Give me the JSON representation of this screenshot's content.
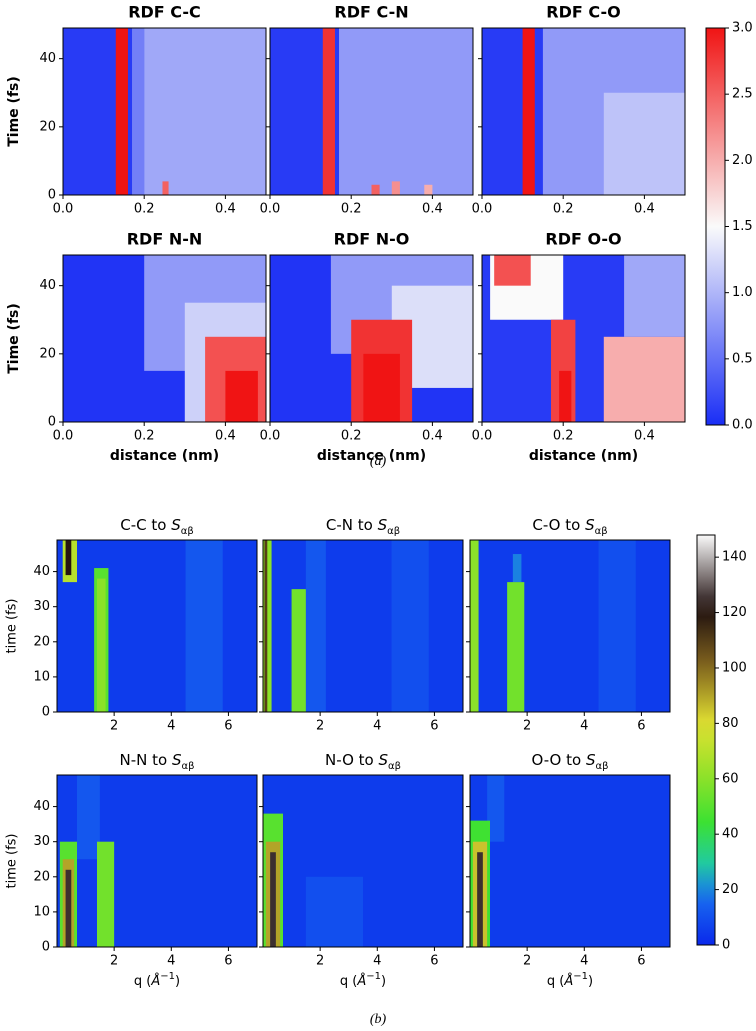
{
  "chart_data": [
    {
      "type": "heatmap",
      "caption": "(a)",
      "xlabel": "distance (nm)",
      "ylabel": "Time (fs)",
      "xlim": [
        0,
        0.5
      ],
      "xticks": [
        {
          "value": 0,
          "label": "0.0"
        },
        0.2,
        0.4
      ],
      "ylim": [
        0,
        49
      ],
      "yticks": [
        0,
        20,
        40
      ],
      "colorbar": {
        "lim": [
          0,
          3
        ],
        "ticks": [
          {
            "value": 0,
            "label": "0.0"
          },
          0.5,
          {
            "value": 1,
            "label": "1.0"
          },
          1.5,
          {
            "value": 2,
            "label": "2.0"
          },
          2.5,
          {
            "value": 3,
            "label": "3.0"
          }
        ]
      },
      "panels": [
        {
          "title": "RDF C-C",
          "cells": [
            {
              "x": [
                0,
                0.5
              ],
              "y": [
                0,
                49
              ],
              "value": 0.1
            },
            {
              "x": [
                0.17,
                0.2
              ],
              "y": [
                0,
                49
              ],
              "value": 0.6
            },
            {
              "x": [
                0.2,
                0.5
              ],
              "y": [
                0,
                49
              ],
              "value": 0.9
            },
            {
              "x": [
                0.13,
                0.16
              ],
              "y": [
                0,
                49
              ],
              "value": 3
            },
            {
              "x": [
                0.245,
                0.26
              ],
              "y": [
                0,
                4
              ],
              "value": 2.5
            }
          ]
        },
        {
          "title": "RDF C-N",
          "cells": [
            {
              "x": [
                0,
                0.5
              ],
              "y": [
                0,
                49
              ],
              "value": 0.1
            },
            {
              "x": [
                0.17,
                0.5
              ],
              "y": [
                0,
                49
              ],
              "value": 0.8
            },
            {
              "x": [
                0.13,
                0.16
              ],
              "y": [
                0,
                49
              ],
              "value": 2.8
            },
            {
              "x": [
                0.25,
                0.27
              ],
              "y": [
                0,
                3
              ],
              "value": 2.5
            },
            {
              "x": [
                0.3,
                0.32
              ],
              "y": [
                0,
                4
              ],
              "value": 2.2
            },
            {
              "x": [
                0.38,
                0.4
              ],
              "y": [
                0,
                3
              ],
              "value": 2.0
            }
          ]
        },
        {
          "title": "RDF C-O",
          "cells": [
            {
              "x": [
                0,
                0.5
              ],
              "y": [
                0,
                49
              ],
              "value": 0.1
            },
            {
              "x": [
                0.15,
                0.5
              ],
              "y": [
                0,
                49
              ],
              "value": 0.8
            },
            {
              "x": [
                0.3,
                0.5
              ],
              "y": [
                0,
                30
              ],
              "value": 1.1
            },
            {
              "x": [
                0.1,
                0.13
              ],
              "y": [
                0,
                49
              ],
              "value": 3
            }
          ]
        },
        {
          "title": "RDF N-N",
          "cells": [
            {
              "x": [
                0,
                0.5
              ],
              "y": [
                0,
                49
              ],
              "value": 0.05
            },
            {
              "x": [
                0.2,
                0.5
              ],
              "y": [
                15,
                49
              ],
              "value": 0.8
            },
            {
              "x": [
                0.3,
                0.5
              ],
              "y": [
                0,
                35
              ],
              "value": 1.2
            },
            {
              "x": [
                0.35,
                0.5
              ],
              "y": [
                0,
                25
              ],
              "value": 2.6
            },
            {
              "x": [
                0.4,
                0.48
              ],
              "y": [
                0,
                15
              ],
              "value": 3
            }
          ]
        },
        {
          "title": "RDF N-O",
          "cells": [
            {
              "x": [
                0,
                0.5
              ],
              "y": [
                0,
                49
              ],
              "value": 0.05
            },
            {
              "x": [
                0.15,
                0.5
              ],
              "y": [
                20,
                49
              ],
              "value": 0.8
            },
            {
              "x": [
                0.3,
                0.5
              ],
              "y": [
                10,
                40
              ],
              "value": 1.3
            },
            {
              "x": [
                0.2,
                0.35
              ],
              "y": [
                0,
                30
              ],
              "value": 2.8
            },
            {
              "x": [
                0.23,
                0.32
              ],
              "y": [
                0,
                20
              ],
              "value": 3
            }
          ]
        },
        {
          "title": "RDF O-O",
          "cells": [
            {
              "x": [
                0,
                0.5
              ],
              "y": [
                0,
                49
              ],
              "value": 0.1
            },
            {
              "x": [
                0.35,
                0.5
              ],
              "y": [
                25,
                49
              ],
              "value": 0.9
            },
            {
              "x": [
                0.02,
                0.2
              ],
              "y": [
                30,
                49
              ],
              "value": 1.5
            },
            {
              "x": [
                0.03,
                0.12
              ],
              "y": [
                40,
                49
              ],
              "value": 2.6
            },
            {
              "x": [
                0.3,
                0.5
              ],
              "y": [
                0,
                25
              ],
              "value": 2.0
            },
            {
              "x": [
                0.17,
                0.23
              ],
              "y": [
                0,
                30
              ],
              "value": 2.7
            },
            {
              "x": [
                0.19,
                0.22
              ],
              "y": [
                0,
                15
              ],
              "value": 3
            }
          ]
        }
      ]
    },
    {
      "type": "heatmap",
      "caption": "(b)",
      "xlabel": [
        "q (",
        "Å",
        "−1",
        ")"
      ],
      "ylabel": "time (fs)",
      "xlim": [
        0,
        7
      ],
      "xticks": [
        2,
        4,
        6
      ],
      "ylim": [
        0,
        49
      ],
      "yticks": [
        0,
        10,
        20,
        30,
        40
      ],
      "colorbar": {
        "lim": [
          0,
          148
        ],
        "ticks": [
          0,
          20,
          40,
          60,
          80,
          100,
          120,
          140
        ]
      },
      "panels": [
        {
          "title": [
            "C-C to ",
            "S",
            "αβ"
          ],
          "cells": [
            {
              "x": [
                0,
                7
              ],
              "y": [
                0,
                49
              ],
              "value": 5
            },
            {
              "x": [
                4.5,
                5.8
              ],
              "y": [
                0,
                49
              ],
              "value": 12
            },
            {
              "x": [
                1.3,
                1.8
              ],
              "y": [
                0,
                41
              ],
              "value": 50
            },
            {
              "x": [
                1.4,
                1.7
              ],
              "y": [
                0,
                38
              ],
              "value": 60
            },
            {
              "x": [
                0.2,
                0.7
              ],
              "y": [
                37,
                49
              ],
              "value": 70
            },
            {
              "x": [
                0.3,
                0.5
              ],
              "y": [
                39,
                49
              ],
              "value": 120
            }
          ]
        },
        {
          "title": [
            "C-N to ",
            "S",
            "αβ"
          ],
          "cells": [
            {
              "x": [
                0,
                7
              ],
              "y": [
                0,
                49
              ],
              "value": 5
            },
            {
              "x": [
                4.5,
                5.8
              ],
              "y": [
                0,
                49
              ],
              "value": 10
            },
            {
              "x": [
                1.5,
                2.2
              ],
              "y": [
                0,
                49
              ],
              "value": 12
            },
            {
              "x": [
                0,
                0.3
              ],
              "y": [
                0,
                49
              ],
              "value": 60
            },
            {
              "x": [
                0.05,
                0.15
              ],
              "y": [
                0,
                49
              ],
              "value": 110
            },
            {
              "x": [
                1.0,
                1.5
              ],
              "y": [
                0,
                35
              ],
              "value": 55
            }
          ]
        },
        {
          "title": [
            "C-O to ",
            "S",
            "αβ"
          ],
          "cells": [
            {
              "x": [
                0,
                7
              ],
              "y": [
                0,
                49
              ],
              "value": 5
            },
            {
              "x": [
                4.5,
                5.8
              ],
              "y": [
                0,
                49
              ],
              "value": 10
            },
            {
              "x": [
                0,
                0.3
              ],
              "y": [
                0,
                49
              ],
              "value": 60
            },
            {
              "x": [
                1.5,
                1.8
              ],
              "y": [
                37,
                45
              ],
              "value": 20
            },
            {
              "x": [
                1.3,
                1.9
              ],
              "y": [
                0,
                37
              ],
              "value": 55
            }
          ]
        },
        {
          "title": [
            "N-N to ",
            "S",
            "αβ"
          ],
          "cells": [
            {
              "x": [
                0,
                7
              ],
              "y": [
                0,
                49
              ],
              "value": 5
            },
            {
              "x": [
                0.7,
                1.5
              ],
              "y": [
                25,
                49
              ],
              "value": 12
            },
            {
              "x": [
                0.1,
                0.7
              ],
              "y": [
                0,
                30
              ],
              "value": 50
            },
            {
              "x": [
                0.2,
                0.6
              ],
              "y": [
                0,
                25
              ],
              "value": 90
            },
            {
              "x": [
                0.3,
                0.5
              ],
              "y": [
                0,
                22
              ],
              "value": 125
            },
            {
              "x": [
                1.4,
                2.0
              ],
              "y": [
                0,
                30
              ],
              "value": 55
            }
          ]
        },
        {
          "title": [
            "N-O to ",
            "S",
            "αβ"
          ],
          "cells": [
            {
              "x": [
                0,
                7
              ],
              "y": [
                0,
                49
              ],
              "value": 5
            },
            {
              "x": [
                1.5,
                3.5
              ],
              "y": [
                0,
                20
              ],
              "value": 10
            },
            {
              "x": [
                0,
                0.7
              ],
              "y": [
                0,
                38
              ],
              "value": 50
            },
            {
              "x": [
                0.1,
                0.6
              ],
              "y": [
                0,
                30
              ],
              "value": 90
            },
            {
              "x": [
                0.25,
                0.45
              ],
              "y": [
                0,
                27
              ],
              "value": 125
            }
          ]
        },
        {
          "title": [
            "O-O to ",
            "S",
            "αβ"
          ],
          "cells": [
            {
              "x": [
                0,
                7
              ],
              "y": [
                0,
                49
              ],
              "value": 5
            },
            {
              "x": [
                0.6,
                1.2
              ],
              "y": [
                30,
                49
              ],
              "value": 12
            },
            {
              "x": [
                0,
                0.7
              ],
              "y": [
                0,
                36
              ],
              "value": 45
            },
            {
              "x": [
                0.1,
                0.6
              ],
              "y": [
                0,
                30
              ],
              "value": 85
            },
            {
              "x": [
                0.25,
                0.45
              ],
              "y": [
                0,
                27
              ],
              "value": 125
            }
          ]
        }
      ]
    }
  ]
}
